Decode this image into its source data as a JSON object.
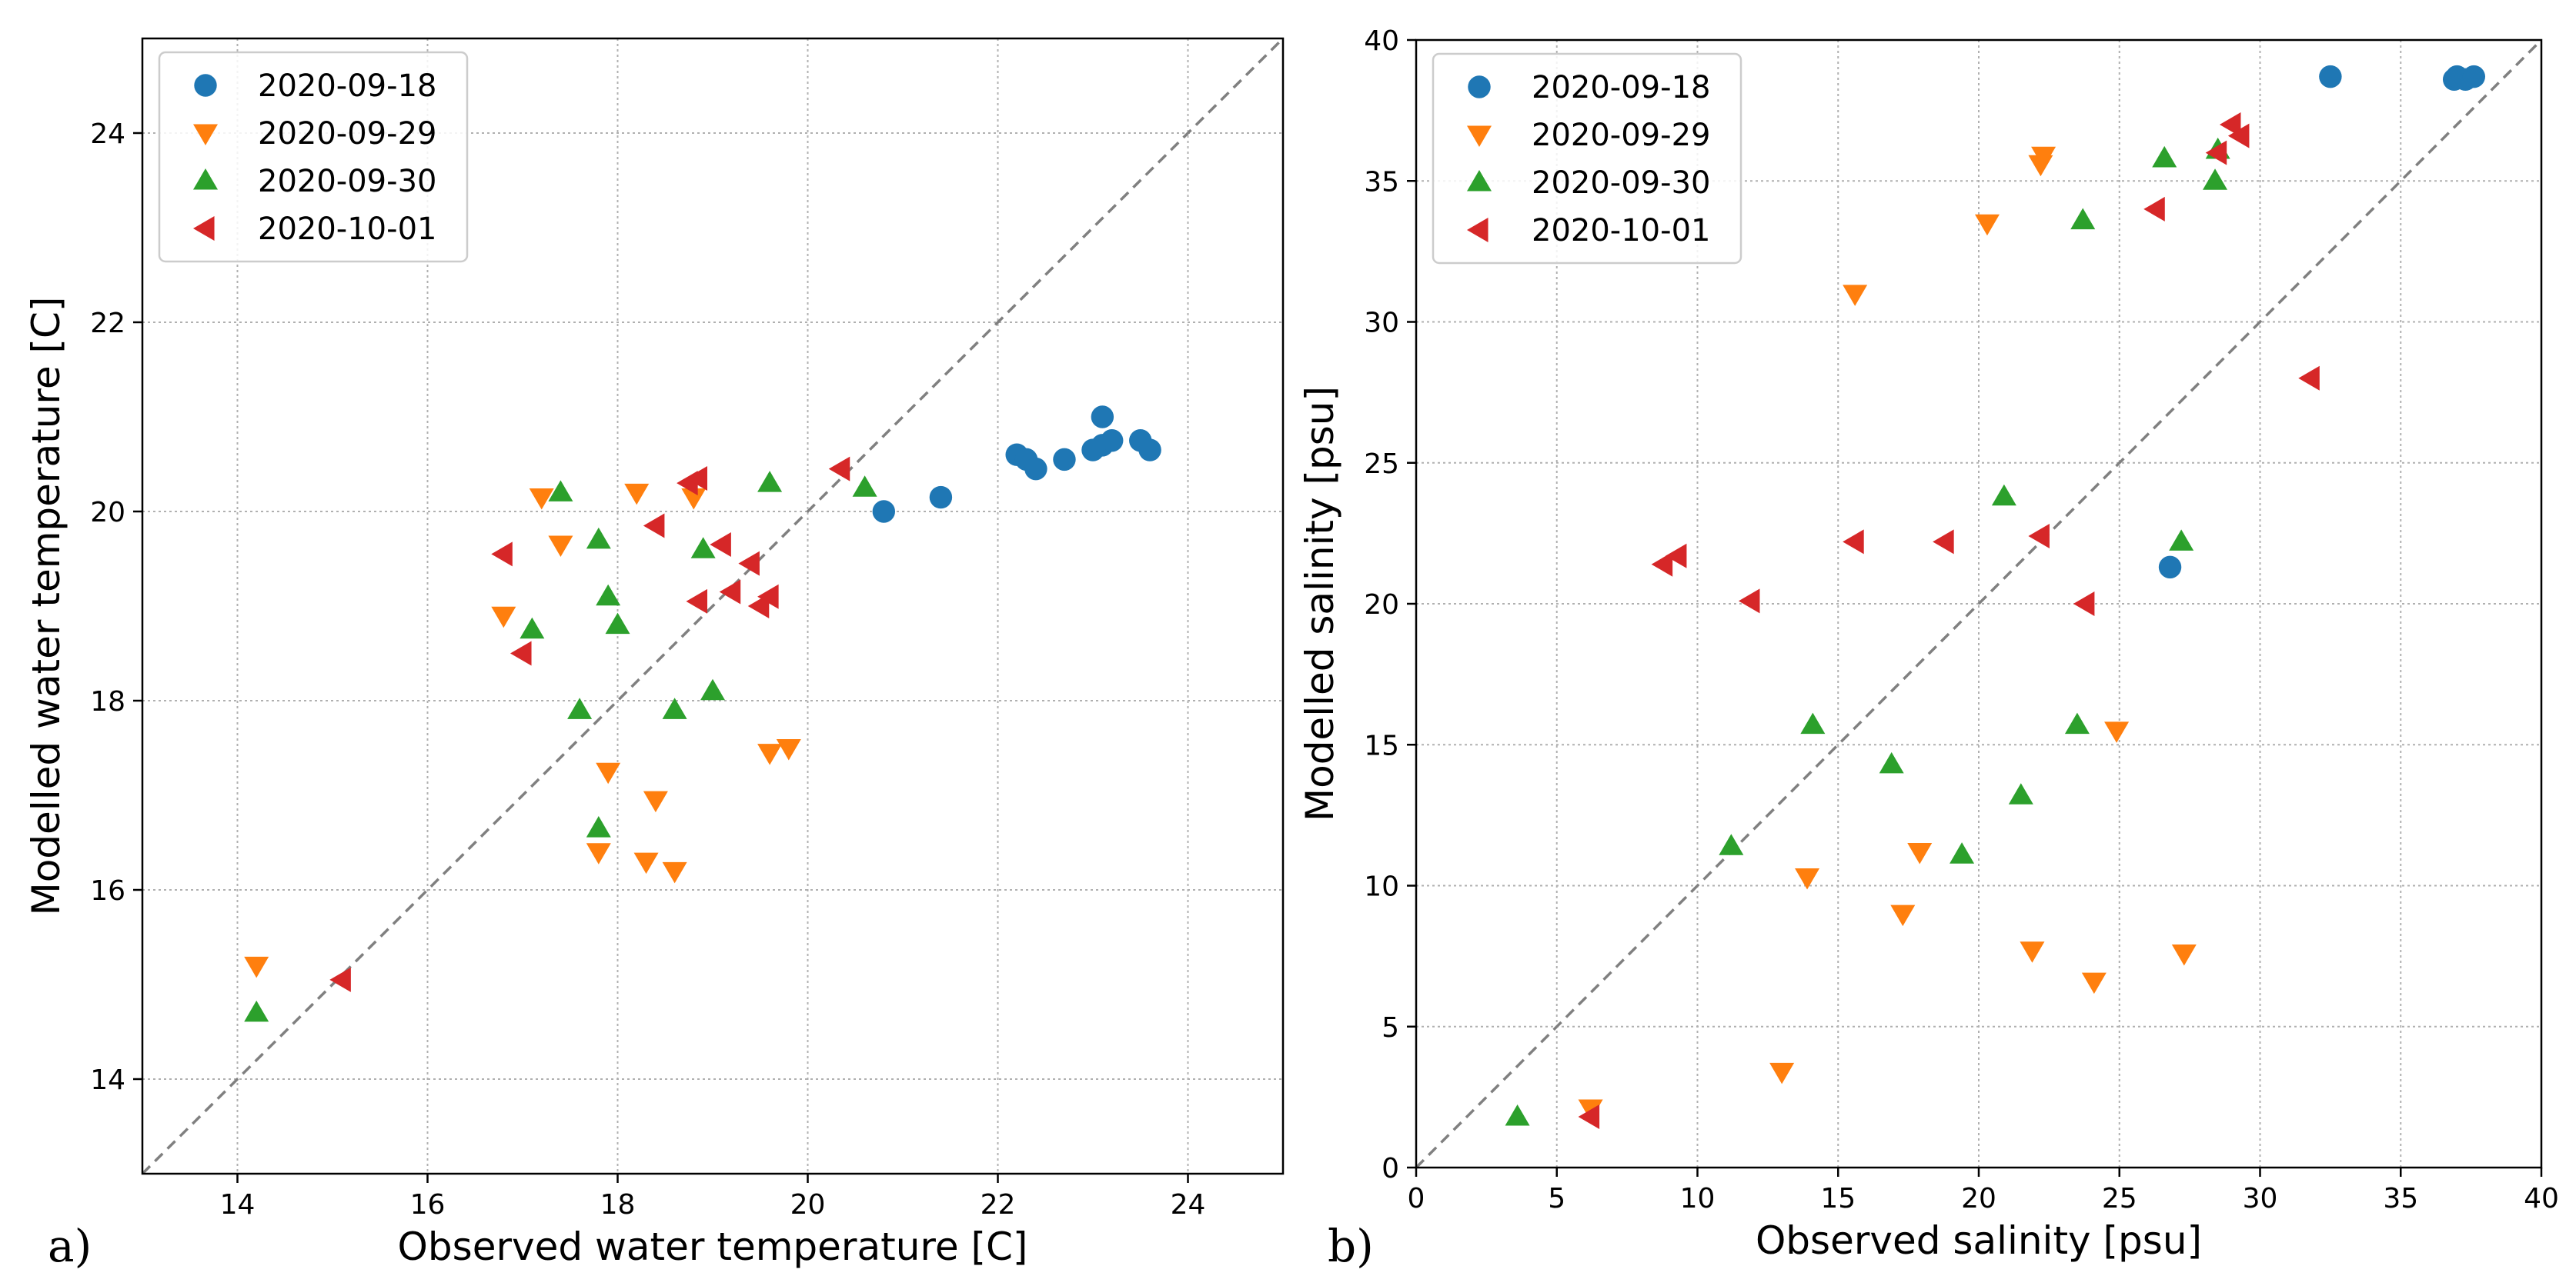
{
  "colors": {
    "2020-09-18": "#1f77b4",
    "2020-09-29": "#ff7f0e",
    "2020-09-30": "#2ca02c",
    "2020-10-01": "#d62728",
    "grid": "#b0b0b0",
    "diagonal": "#808080"
  },
  "chart_data": [
    {
      "type": "scatter",
      "panel_label": "a)",
      "title": "",
      "xlabel": "Observed water temperature [C]",
      "ylabel": "Modelled water temperature [C]",
      "xlim": [
        13,
        25
      ],
      "ylim": [
        13,
        25
      ],
      "xticks": [
        14,
        16,
        18,
        20,
        22,
        24
      ],
      "yticks": [
        14,
        16,
        18,
        20,
        22,
        24
      ],
      "grid": true,
      "legend_position": "top-left",
      "reference_line": "y = x (dashed)",
      "series": [
        {
          "name": "2020-09-18",
          "marker": "circle",
          "points": [
            [
              20.8,
              20.0
            ],
            [
              21.4,
              20.15
            ],
            [
              22.2,
              20.6
            ],
            [
              22.3,
              20.55
            ],
            [
              22.4,
              20.45
            ],
            [
              22.7,
              20.55
            ],
            [
              23.0,
              20.65
            ],
            [
              23.1,
              21.0
            ],
            [
              23.1,
              20.7
            ],
            [
              23.2,
              20.75
            ],
            [
              23.5,
              20.75
            ],
            [
              23.6,
              20.65
            ]
          ]
        },
        {
          "name": "2020-09-29",
          "marker": "triangle-down",
          "points": [
            [
              14.2,
              15.2
            ],
            [
              16.8,
              18.9
            ],
            [
              17.2,
              20.15
            ],
            [
              17.4,
              19.65
            ],
            [
              17.8,
              16.4
            ],
            [
              17.9,
              17.25
            ],
            [
              18.2,
              20.2
            ],
            [
              18.3,
              16.3
            ],
            [
              18.4,
              16.95
            ],
            [
              18.6,
              16.2
            ],
            [
              18.8,
              20.15
            ],
            [
              19.6,
              17.45
            ],
            [
              19.8,
              17.5
            ]
          ]
        },
        {
          "name": "2020-09-30",
          "marker": "triangle-up",
          "points": [
            [
              14.2,
              14.7
            ],
            [
              17.1,
              18.75
            ],
            [
              17.4,
              20.2
            ],
            [
              17.6,
              17.9
            ],
            [
              17.8,
              19.7
            ],
            [
              17.8,
              16.65
            ],
            [
              17.9,
              19.1
            ],
            [
              18.0,
              18.8
            ],
            [
              18.6,
              17.9
            ],
            [
              18.9,
              19.6
            ],
            [
              19.0,
              18.1
            ],
            [
              19.6,
              20.3
            ],
            [
              20.6,
              20.25
            ]
          ]
        },
        {
          "name": "2020-10-01",
          "marker": "triangle-left",
          "points": [
            [
              15.1,
              15.05
            ],
            [
              16.8,
              19.55
            ],
            [
              17.0,
              18.5
            ],
            [
              18.4,
              19.85
            ],
            [
              18.75,
              20.3
            ],
            [
              18.85,
              20.35
            ],
            [
              18.85,
              19.05
            ],
            [
              19.1,
              19.65
            ],
            [
              19.2,
              19.15
            ],
            [
              19.4,
              19.45
            ],
            [
              19.5,
              19.0
            ],
            [
              19.6,
              19.1
            ],
            [
              20.35,
              20.45
            ]
          ]
        }
      ]
    },
    {
      "type": "scatter",
      "panel_label": "b)",
      "title": "",
      "xlabel": "Observed salinity [psu]",
      "ylabel": "Modelled salinity [psu]",
      "xlim": [
        0,
        40
      ],
      "ylim": [
        0,
        40
      ],
      "xticks": [
        0,
        5,
        10,
        15,
        20,
        25,
        30,
        35,
        40
      ],
      "yticks": [
        0,
        5,
        10,
        15,
        20,
        25,
        30,
        35,
        40
      ],
      "grid": true,
      "legend_position": "top-left",
      "reference_line": "y = x (dashed)",
      "series": [
        {
          "name": "2020-09-18",
          "marker": "circle",
          "points": [
            [
              26.8,
              21.3
            ],
            [
              32.5,
              38.7
            ],
            [
              36.9,
              38.6
            ],
            [
              37.0,
              38.7
            ],
            [
              37.3,
              38.6
            ],
            [
              37.6,
              38.7
            ]
          ]
        },
        {
          "name": "2020-09-29",
          "marker": "triangle-down",
          "points": [
            [
              6.2,
              2.1
            ],
            [
              13.0,
              3.4
            ],
            [
              13.9,
              10.3
            ],
            [
              15.6,
              31.0
            ],
            [
              17.3,
              9.0
            ],
            [
              17.9,
              11.2
            ],
            [
              20.3,
              33.5
            ],
            [
              21.9,
              7.7
            ],
            [
              22.2,
              35.6
            ],
            [
              22.3,
              35.9
            ],
            [
              24.1,
              6.6
            ],
            [
              24.9,
              15.5
            ],
            [
              27.3,
              7.6
            ]
          ]
        },
        {
          "name": "2020-09-30",
          "marker": "triangle-up",
          "points": [
            [
              3.6,
              1.8
            ],
            [
              11.2,
              11.4
            ],
            [
              14.1,
              15.7
            ],
            [
              16.9,
              14.3
            ],
            [
              19.4,
              11.1
            ],
            [
              20.9,
              23.8
            ],
            [
              21.5,
              13.2
            ],
            [
              23.5,
              15.7
            ],
            [
              23.7,
              33.6
            ],
            [
              26.6,
              35.8
            ],
            [
              27.2,
              22.2
            ],
            [
              28.4,
              35.0
            ],
            [
              28.5,
              36.1
            ]
          ]
        },
        {
          "name": "2020-10-01",
          "marker": "triangle-left",
          "points": [
            [
              6.2,
              1.8
            ],
            [
              8.8,
              21.4
            ],
            [
              9.3,
              21.7
            ],
            [
              11.9,
              20.1
            ],
            [
              15.6,
              22.2
            ],
            [
              18.8,
              22.2
            ],
            [
              22.2,
              22.4
            ],
            [
              23.8,
              20.0
            ],
            [
              26.3,
              34.0
            ],
            [
              28.5,
              36.0
            ],
            [
              29.0,
              37.0
            ],
            [
              29.3,
              36.6
            ],
            [
              31.8,
              28.0
            ]
          ]
        }
      ]
    }
  ]
}
